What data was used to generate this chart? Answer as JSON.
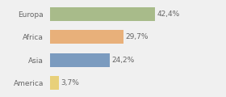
{
  "categories": [
    "Europa",
    "Africa",
    "Asia",
    "America"
  ],
  "values": [
    42.4,
    29.7,
    24.2,
    3.7
  ],
  "bar_colors": [
    "#a8bb8a",
    "#e8b07a",
    "#7b9bbf",
    "#e8d07a"
  ],
  "labels": [
    "42,4%",
    "29,7%",
    "24,2%",
    "3,7%"
  ],
  "xlim": [
    0,
    60
  ],
  "background_color": "#f0f0f0",
  "bar_height": 0.6,
  "text_color": "#666666",
  "label_fontsize": 6.5,
  "category_fontsize": 6.5
}
